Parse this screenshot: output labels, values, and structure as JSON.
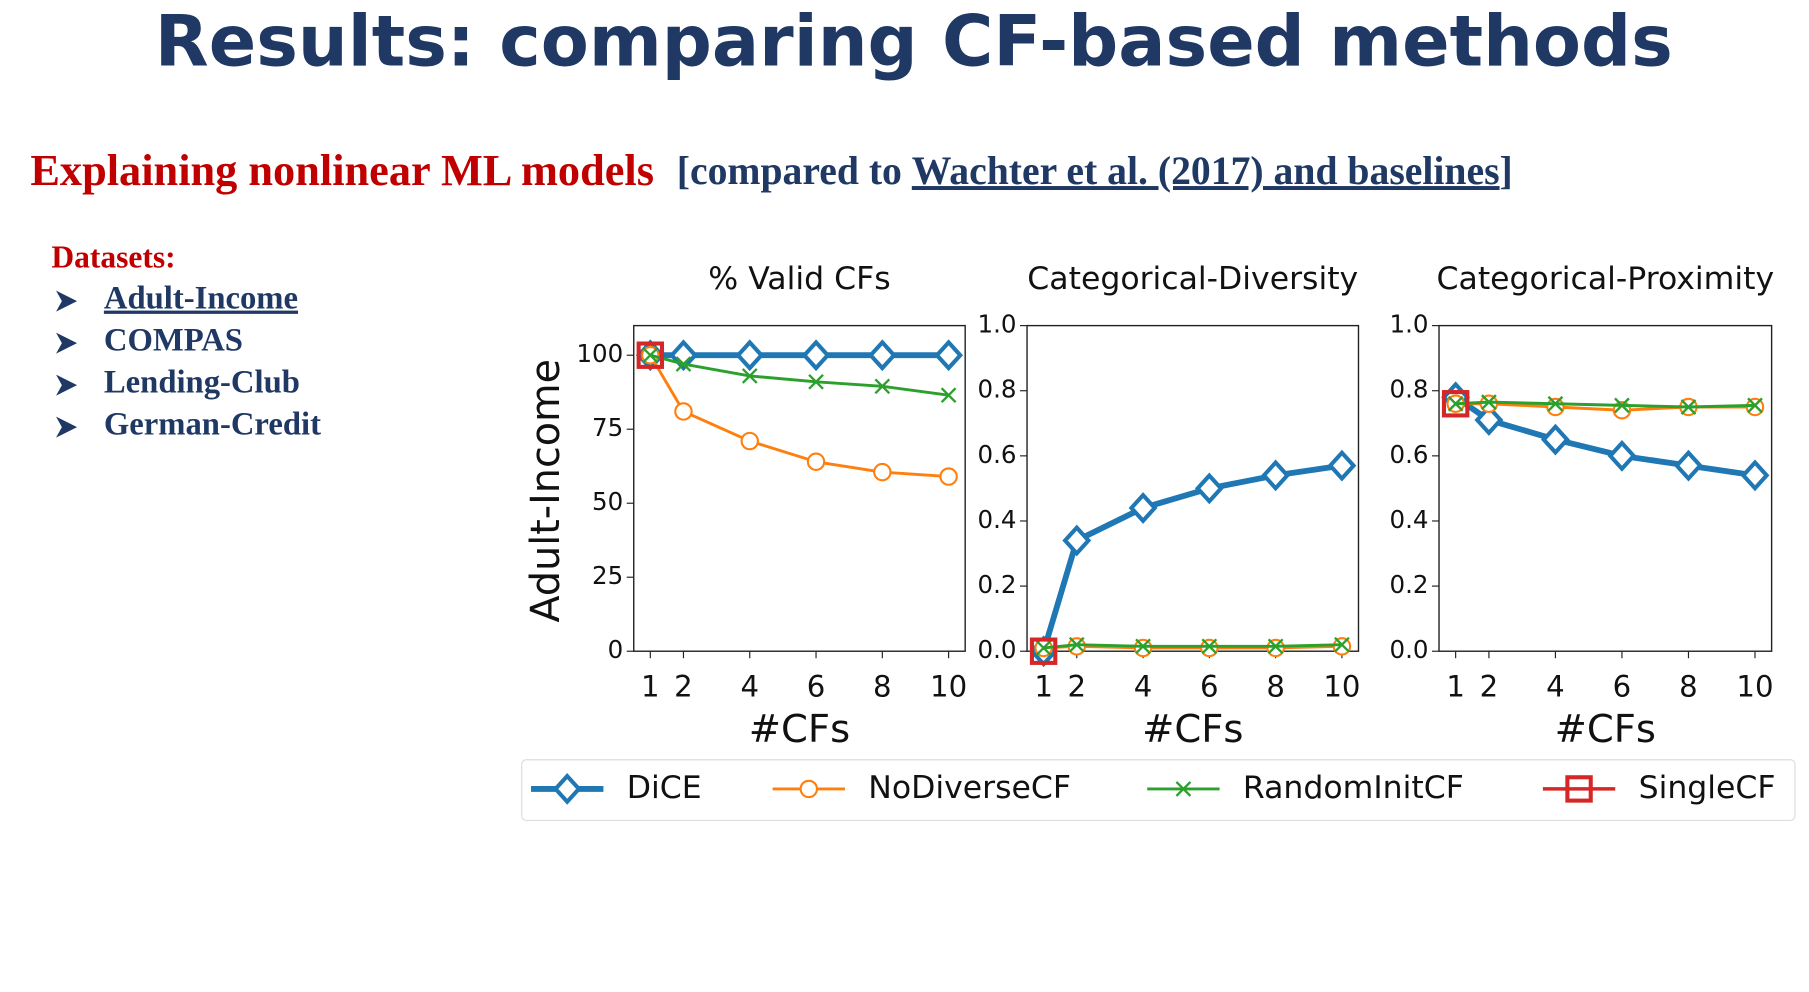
{
  "slide": {
    "title": "Results: comparing CF-based methods",
    "subtitle": {
      "lead": "Explaining nonlinear ML models",
      "open": "[compared to ",
      "link": "Wachter et al. (2017) and baselines",
      "close": "]"
    },
    "datasets_heading": "Datasets:",
    "datasets": [
      "Adult-Income",
      "COMPAS",
      "Lending-Club",
      "German-Credit"
    ]
  },
  "legend": [
    {
      "name": "DiCE",
      "color": "#1f77b4",
      "marker": "diamond"
    },
    {
      "name": "NoDiverseCF",
      "color": "#ff7f0e",
      "marker": "circle"
    },
    {
      "name": "RandomInitCF",
      "color": "#2ca02c",
      "marker": "x"
    },
    {
      "name": "SingleCF",
      "color": "#d62728",
      "marker": "square"
    }
  ],
  "chart_data": [
    {
      "type": "line",
      "title": "% Valid CFs",
      "ylabel": "Adult-Income",
      "xlabel": "#CFs",
      "x": [
        1,
        2,
        4,
        6,
        8,
        10
      ],
      "xlim": [
        0.5,
        10.5
      ],
      "xticks": [
        1,
        2,
        4,
        6,
        8,
        10
      ],
      "ylim": [
        0,
        110
      ],
      "yticks": [
        0,
        25,
        50,
        75,
        100
      ],
      "series": [
        {
          "values": [
            100,
            100,
            100,
            100,
            100,
            100
          ]
        },
        {
          "values": [
            100,
            81,
            71,
            64,
            60.5,
            59
          ]
        },
        {
          "values": [
            100,
            97,
            93,
            91,
            89.5,
            86.5
          ]
        },
        {
          "values": [
            100,
            null,
            null,
            null,
            null,
            null
          ]
        }
      ]
    },
    {
      "type": "line",
      "title": "Categorical-Diversity",
      "xlabel": "#CFs",
      "x": [
        1,
        2,
        4,
        6,
        8,
        10
      ],
      "xlim": [
        0.5,
        10.5
      ],
      "xticks": [
        1,
        2,
        4,
        6,
        8,
        10
      ],
      "ylim": [
        0,
        1
      ],
      "yticks": [
        {
          "value": 0,
          "label": "0.0"
        },
        0.2,
        0.4,
        0.6,
        0.8,
        {
          "value": 1,
          "label": "1.0"
        }
      ],
      "series": [
        {
          "values": [
            0,
            0.34,
            0.44,
            0.5,
            0.54,
            0.57
          ]
        },
        {
          "values": [
            0.01,
            0.015,
            0.01,
            0.01,
            0.01,
            0.015
          ]
        },
        {
          "values": [
            0.01,
            0.02,
            0.015,
            0.015,
            0.015,
            0.02
          ]
        },
        {
          "values": [
            0,
            null,
            null,
            null,
            null,
            null
          ]
        }
      ]
    },
    {
      "type": "line",
      "title": "Categorical-Proximity",
      "xlabel": "#CFs",
      "x": [
        1,
        2,
        4,
        6,
        8,
        10
      ],
      "xlim": [
        0.5,
        10.5
      ],
      "xticks": [
        1,
        2,
        4,
        6,
        8,
        10
      ],
      "ylim": [
        0,
        1
      ],
      "yticks": [
        {
          "value": 0,
          "label": "0.0"
        },
        0.2,
        0.4,
        0.6,
        0.8,
        {
          "value": 1,
          "label": "1.0"
        }
      ],
      "series": [
        {
          "values": [
            0.78,
            0.71,
            0.65,
            0.6,
            0.57,
            0.54
          ]
        },
        {
          "values": [
            0.76,
            0.76,
            0.75,
            0.74,
            0.75,
            0.75
          ]
        },
        {
          "values": [
            0.76,
            0.765,
            0.76,
            0.755,
            0.75,
            0.755
          ]
        },
        {
          "values": [
            0.76,
            null,
            null,
            null,
            null,
            null
          ]
        }
      ]
    }
  ]
}
